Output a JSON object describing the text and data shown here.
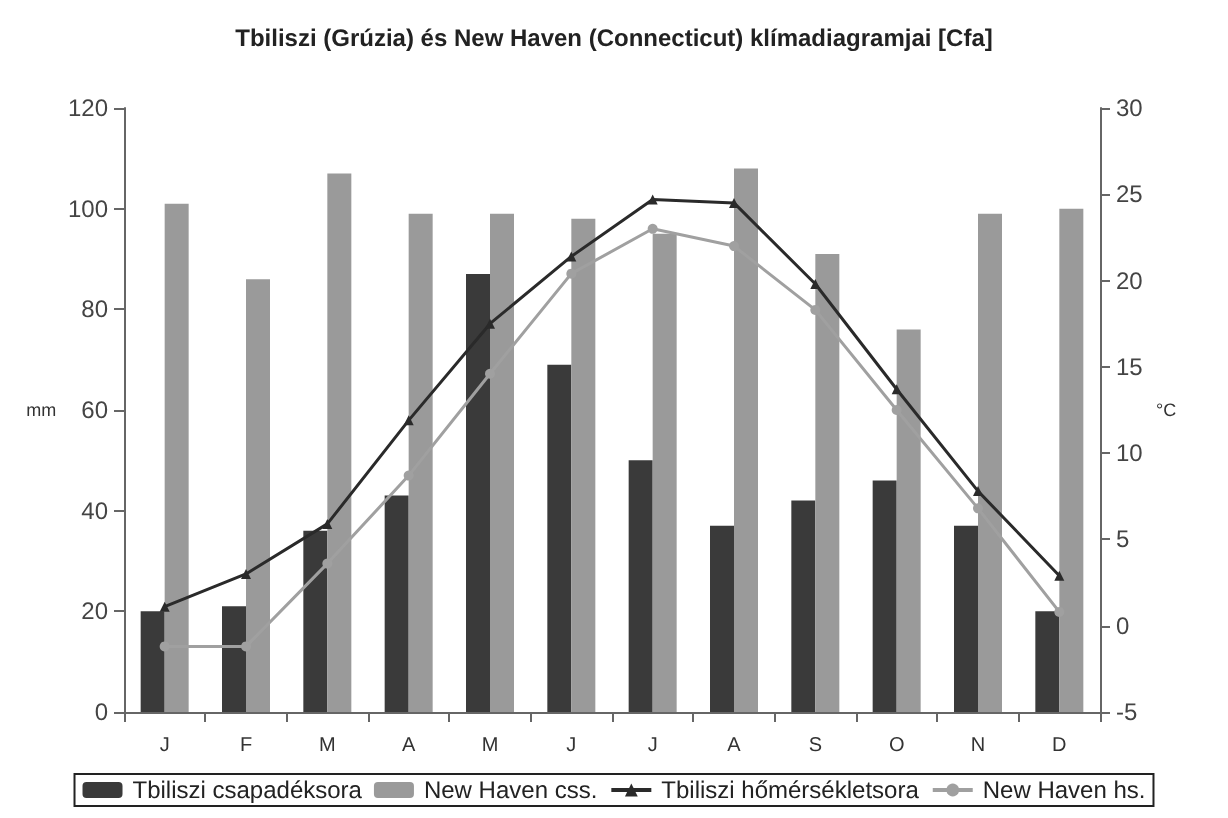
{
  "chart_data": {
    "type": "bar",
    "title": "Tbiliszi (Grúzia) és New Haven (Connecticut) klímadiagramjai [Cfa]",
    "ylabel": "mm",
    "y2label": "°C",
    "categories": [
      "J",
      "F",
      "M",
      "A",
      "M",
      "J",
      "J",
      "A",
      "S",
      "O",
      "N",
      "D"
    ],
    "series": [
      {
        "name": "Tbiliszi csapadéksora",
        "color": "#3a3a3a",
        "values": [
          20,
          21,
          36,
          43,
          87,
          69,
          50,
          37,
          42,
          46,
          37,
          20
        ]
      },
      {
        "name": "New Haven css.",
        "color": "#9a9a9a",
        "values": [
          101,
          86,
          107,
          99,
          99,
          98,
          95,
          108,
          91,
          76,
          99,
          100
        ]
      },
      {
        "name": "Tbiliszi hőmérsékletsora",
        "type": "line",
        "axis": "y2",
        "marker": "triangle",
        "color": "#2a2a2a",
        "values": [
          1.1,
          3.0,
          5.9,
          11.9,
          17.5,
          21.4,
          24.7,
          24.5,
          19.8,
          13.7,
          7.8,
          2.9
        ]
      },
      {
        "name": "New Haven hs.",
        "type": "line",
        "axis": "y2",
        "marker": "circle",
        "color": "#a0a0a0",
        "values": [
          -1.2,
          -1.2,
          3.6,
          8.7,
          14.6,
          20.4,
          23,
          22,
          18.3,
          12.5,
          6.8,
          0.8
        ]
      }
    ],
    "ylim": [
      0,
      120
    ],
    "yticks": [
      0,
      20,
      40,
      60,
      80,
      100,
      120
    ],
    "y2lim": [
      -5,
      30
    ],
    "y2ticks": [
      -5,
      0,
      5,
      10,
      15,
      20,
      25,
      30
    ],
    "grid": false,
    "legend": "bottom",
    "line_style": "solid"
  }
}
